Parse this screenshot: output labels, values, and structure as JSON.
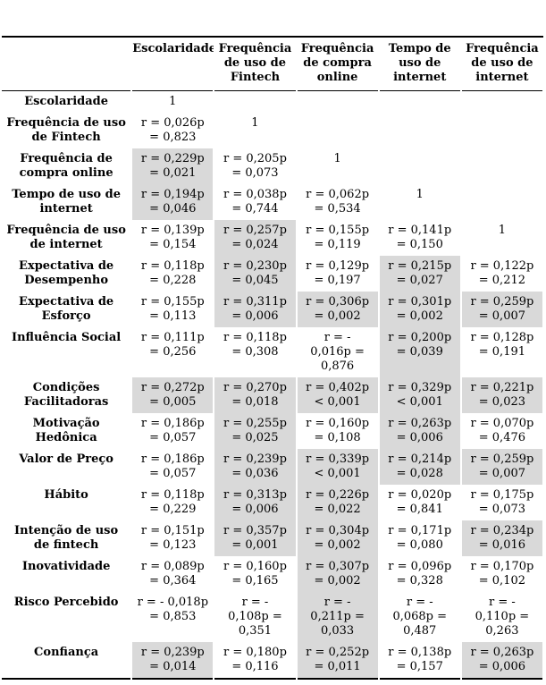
{
  "colors": {
    "highlight_cell": "#d9d9d9",
    "text": "#000000",
    "rule": "#000000",
    "background": "#ffffff"
  },
  "table": {
    "corner_label": "",
    "columns": [
      "Escolaridade",
      "Frequência\nde uso de\nFintech",
      "Frequência\nde compra\nonline",
      "Tempo de\nuso de\ninternet",
      "Frequência\nde uso de\ninternet"
    ],
    "rows": [
      {
        "label": "Escolaridade",
        "cells": [
          {
            "text": "1",
            "gray": false
          },
          {
            "text": "",
            "gray": false
          },
          {
            "text": "",
            "gray": false
          },
          {
            "text": "",
            "gray": false
          },
          {
            "text": "",
            "gray": false
          }
        ]
      },
      {
        "label": "Frequência de uso\nde Fintech",
        "cells": [
          {
            "text": "r = 0,026p\n= 0,823",
            "gray": false
          },
          {
            "text": "1",
            "gray": false
          },
          {
            "text": "",
            "gray": false
          },
          {
            "text": "",
            "gray": false
          },
          {
            "text": "",
            "gray": false
          }
        ]
      },
      {
        "label": "Frequência de\ncompra online",
        "cells": [
          {
            "text": "r = 0,229p\n= 0,021",
            "gray": true
          },
          {
            "text": "r = 0,205p\n= 0,073",
            "gray": false
          },
          {
            "text": "1",
            "gray": false
          },
          {
            "text": "",
            "gray": false
          },
          {
            "text": "",
            "gray": false
          }
        ]
      },
      {
        "label": "Tempo de uso de\ninternet",
        "cells": [
          {
            "text": "r = 0,194p\n= 0,046",
            "gray": true
          },
          {
            "text": "r = 0,038p\n= 0,744",
            "gray": false
          },
          {
            "text": "r = 0,062p\n= 0,534",
            "gray": false
          },
          {
            "text": "1",
            "gray": false
          },
          {
            "text": "",
            "gray": false
          }
        ]
      },
      {
        "label": "Frequência de uso\nde internet",
        "cells": [
          {
            "text": "r = 0,139p\n= 0,154",
            "gray": false
          },
          {
            "text": "r = 0,257p\n= 0,024",
            "gray": true
          },
          {
            "text": "r = 0,155p\n= 0,119",
            "gray": false
          },
          {
            "text": "r = 0,141p\n= 0,150",
            "gray": false
          },
          {
            "text": "1",
            "gray": false
          }
        ]
      },
      {
        "label": "Expectativa de\nDesempenho",
        "cells": [
          {
            "text": "r = 0,118p\n= 0,228",
            "gray": false
          },
          {
            "text": "r = 0,230p\n= 0,045",
            "gray": true
          },
          {
            "text": "r = 0,129p\n= 0,197",
            "gray": false
          },
          {
            "text": "r = 0,215p\n= 0,027",
            "gray": true
          },
          {
            "text": "r = 0,122p\n= 0,212",
            "gray": false
          }
        ]
      },
      {
        "label": "Expectativa de\nEsforço",
        "cells": [
          {
            "text": "r = 0,155p\n= 0,113",
            "gray": false
          },
          {
            "text": "r = 0,311p\n= 0,006",
            "gray": true
          },
          {
            "text": "r = 0,306p\n= 0,002",
            "gray": true
          },
          {
            "text": "r = 0,301p\n= 0,002",
            "gray": true
          },
          {
            "text": "r = 0,259p\n= 0,007",
            "gray": true
          }
        ]
      },
      {
        "label": "Influência Social",
        "cells": [
          {
            "text": "r = 0,111p\n= 0,256",
            "gray": false
          },
          {
            "text": "r = 0,118p\n= 0,308",
            "gray": false
          },
          {
            "text": "r = -\n0,016p =\n0,876",
            "gray": false
          },
          {
            "text": "r = 0,200p\n= 0,039",
            "gray": true
          },
          {
            "text": "r = 0,128p\n= 0,191",
            "gray": false
          }
        ]
      },
      {
        "label": "Condições\nFacilitadoras",
        "cells": [
          {
            "text": "r = 0,272p\n= 0,005",
            "gray": true
          },
          {
            "text": "r = 0,270p\n= 0,018",
            "gray": true
          },
          {
            "text": "r = 0,402p\n< 0,001",
            "gray": true
          },
          {
            "text": "r = 0,329p\n< 0,001",
            "gray": true
          },
          {
            "text": "r = 0,221p\n= 0,023",
            "gray": true
          }
        ]
      },
      {
        "label": "Motivação\nHedônica",
        "cells": [
          {
            "text": "r = 0,186p\n= 0,057",
            "gray": false
          },
          {
            "text": "r = 0,255p\n= 0,025",
            "gray": true
          },
          {
            "text": "r = 0,160p\n= 0,108",
            "gray": false
          },
          {
            "text": "r = 0,263p\n= 0,006",
            "gray": true
          },
          {
            "text": "r = 0,070p\n= 0,476",
            "gray": false
          }
        ]
      },
      {
        "label": "Valor de Preço",
        "cells": [
          {
            "text": "r = 0,186p\n= 0,057",
            "gray": false
          },
          {
            "text": "r = 0,239p\n= 0,036",
            "gray": true
          },
          {
            "text": "r = 0,339p\n< 0,001",
            "gray": true
          },
          {
            "text": "r = 0,214p\n= 0,028",
            "gray": true
          },
          {
            "text": "r = 0,259p\n= 0,007",
            "gray": true
          }
        ]
      },
      {
        "label": "Hábito",
        "cells": [
          {
            "text": "r = 0,118p\n= 0,229",
            "gray": false
          },
          {
            "text": "r = 0,313p\n= 0,006",
            "gray": true
          },
          {
            "text": "r = 0,226p\n= 0,022",
            "gray": true
          },
          {
            "text": "r = 0,020p\n= 0,841",
            "gray": false
          },
          {
            "text": "r = 0,175p\n= 0,073",
            "gray": false
          }
        ]
      },
      {
        "label": "Intenção de uso\nde fintech",
        "cells": [
          {
            "text": "r = 0,151p\n= 0,123",
            "gray": false
          },
          {
            "text": "r = 0,357p\n= 0,001",
            "gray": true
          },
          {
            "text": "r = 0,304p\n= 0,002",
            "gray": true
          },
          {
            "text": "r = 0,171p\n= 0,080",
            "gray": false
          },
          {
            "text": "r = 0,234p\n= 0,016",
            "gray": true
          }
        ]
      },
      {
        "label": "Inovatividade",
        "cells": [
          {
            "text": "r = 0,089p\n= 0,364",
            "gray": false
          },
          {
            "text": "r = 0,160p\n= 0,165",
            "gray": false
          },
          {
            "text": "r = 0,307p\n= 0,002",
            "gray": true
          },
          {
            "text": "r = 0,096p\n= 0,328",
            "gray": false
          },
          {
            "text": "r = 0,170p\n= 0,102",
            "gray": false
          }
        ]
      },
      {
        "label": "Risco Percebido",
        "cells": [
          {
            "text": "r = - 0,018p\n= 0,853",
            "gray": false
          },
          {
            "text": "r = -\n0,108p =\n0,351",
            "gray": false
          },
          {
            "text": "r = -\n0,211p =\n0,033",
            "gray": true
          },
          {
            "text": "r = -\n0,068p =\n0,487",
            "gray": false
          },
          {
            "text": "r = -\n0,110p =\n0,263",
            "gray": false
          }
        ]
      },
      {
        "label": "Confiança",
        "cells": [
          {
            "text": "r = 0,239p\n= 0,014",
            "gray": true
          },
          {
            "text": "r = 0,180p\n= 0,116",
            "gray": false
          },
          {
            "text": "r = 0,252p\n= 0,011",
            "gray": true
          },
          {
            "text": "r = 0,138p\n= 0,157",
            "gray": false
          },
          {
            "text": "r = 0,263p\n= 0,006",
            "gray": true
          }
        ]
      }
    ]
  }
}
